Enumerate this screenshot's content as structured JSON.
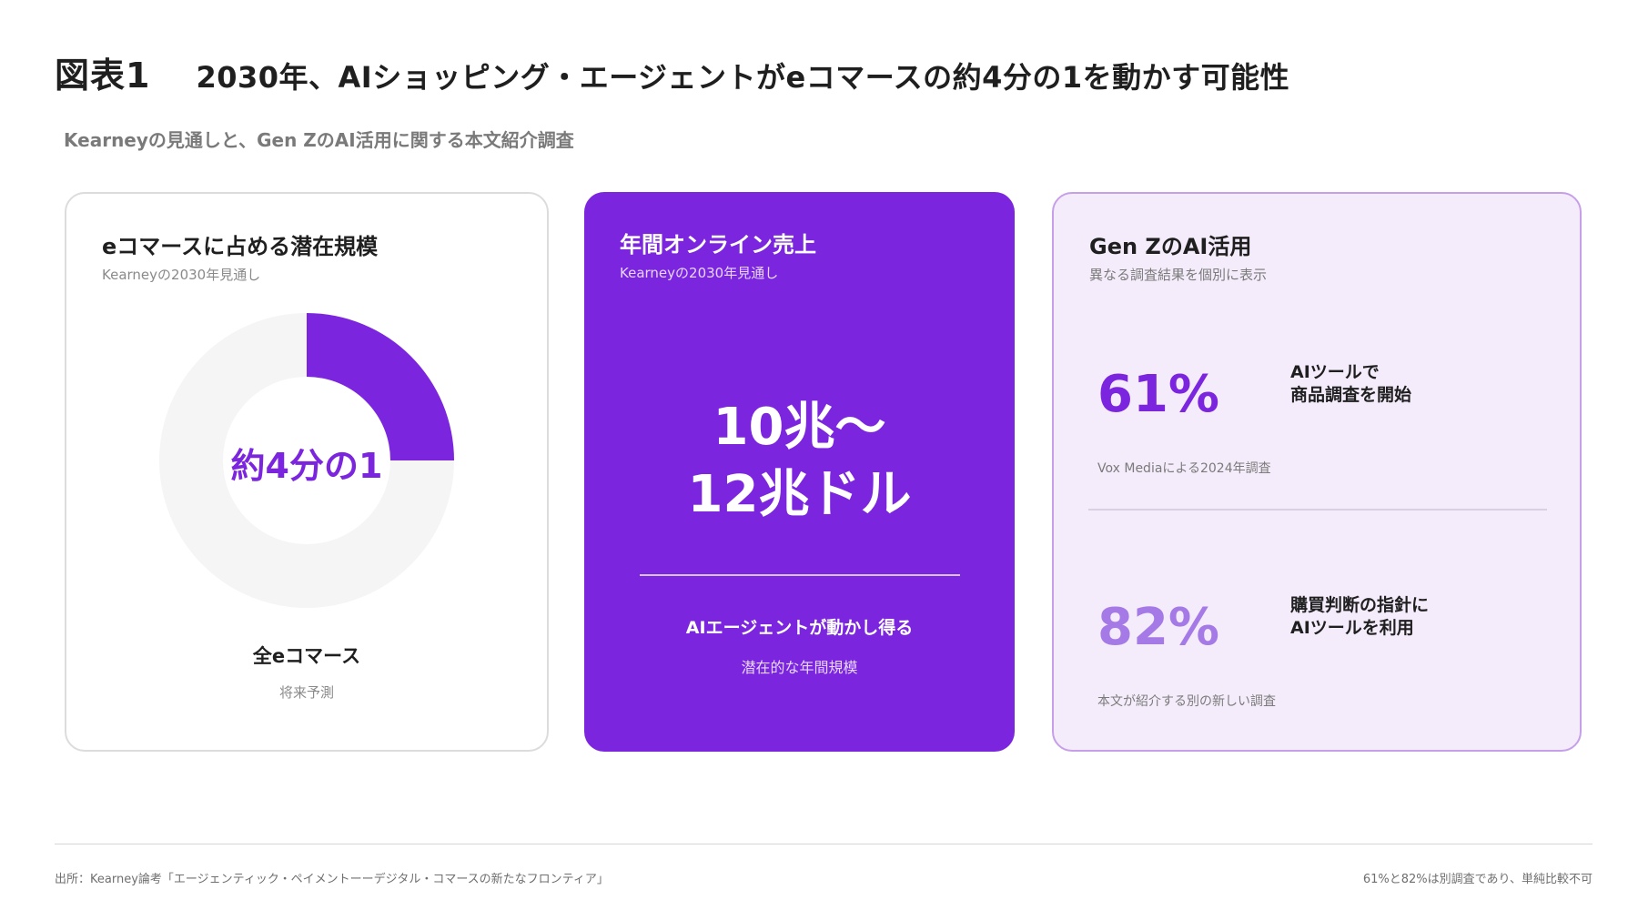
{
  "heading": {
    "figure_number": "図表1",
    "title": "2030年、AIショッピング・エージェントがeコマースの約4分の1を動かす可能性",
    "subtitle": "Kearneyの見通しと、Gen ZのAI活用に関する本文紹介調査"
  },
  "card1": {
    "title": "eコマースに占める潜在規模",
    "subtitle": "Kearneyの2030年見通し",
    "center_label": "約4分の1",
    "legend_main": "全eコマース",
    "legend_sub": "将来予測"
  },
  "card2": {
    "title": "年間オンライン売上",
    "subtitle": "Kearneyの2030年見通し",
    "value_line1": "10兆〜",
    "value_line2": "12兆ドル",
    "caption_main": "AIエージェントが動かし得る",
    "caption_sub": "潜在的な年間規模"
  },
  "card3": {
    "title": "Gen ZのAI活用",
    "subtitle": "異なる調査結果を個別に表示",
    "stats": [
      {
        "value": "61%",
        "label_line1": "AIツールで",
        "label_line2": "商品調査を開始",
        "source": "Vox Mediaによる2024年調査",
        "color": "#7b25de"
      },
      {
        "value": "82%",
        "label_line1": "購買判断の指針に",
        "label_line2": "AIツールを利用",
        "source": "本文が紹介する別の新しい調査",
        "color": "#a57ae6"
      }
    ]
  },
  "chart_data": {
    "type": "pie",
    "variant": "donut",
    "slices": [
      {
        "label": "約4分の1",
        "value": 0.25,
        "color": "#7b25de"
      },
      {
        "label": "全eコマース",
        "value": 0.75,
        "color": "#f5f5f5"
      }
    ]
  },
  "footer": {
    "source": "出所：Kearney論考「エージェンティック・ペイメントーーデジタル・コマースの新たなフロンティア」",
    "note": "61%と82%は別調査であり、単純比較不可"
  }
}
